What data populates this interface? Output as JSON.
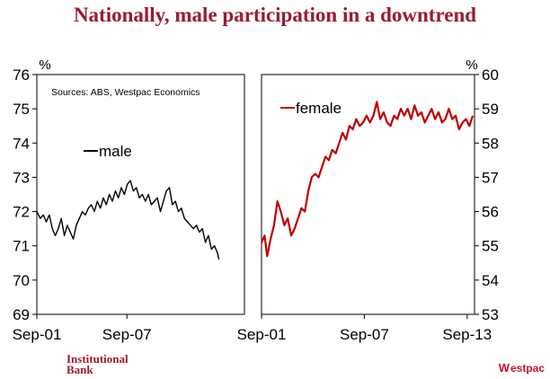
{
  "title": "Nationally, male participation in a downtrend",
  "footer": {
    "institutional_line1": "Institutional",
    "institutional_line2": "Bank",
    "westpac_mark": "W",
    "westpac_label": "estpac"
  },
  "colors": {
    "title": "#9b1b30",
    "male_line": "#000000",
    "female_line": "#c00000",
    "brand_red": "#c8102e"
  },
  "chart_data": [
    {
      "type": "line",
      "title": "",
      "source_note": "Sources: ABS, Westpac Economics",
      "unit_label": "%",
      "ylim": [
        69,
        76
      ],
      "yticks": [
        69,
        70,
        71,
        72,
        73,
        74,
        75,
        76
      ],
      "xlim": [
        2001.67,
        2015.5
      ],
      "xtick_labels": [
        "Sep-01",
        "Sep-07"
      ],
      "xtick_positions": [
        2001.67,
        2007.67
      ],
      "grid": false,
      "series": [
        {
          "name": "male",
          "x": [
            2001.67,
            2001.9,
            2002.1,
            2002.3,
            2002.5,
            2002.7,
            2002.9,
            2003.1,
            2003.3,
            2003.5,
            2003.7,
            2003.9,
            2004.1,
            2004.3,
            2004.5,
            2004.7,
            2004.9,
            2005.1,
            2005.3,
            2005.5,
            2005.7,
            2005.9,
            2006.1,
            2006.3,
            2006.5,
            2006.7,
            2006.9,
            2007.1,
            2007.3,
            2007.5,
            2007.7,
            2007.9,
            2008.1,
            2008.3,
            2008.5,
            2008.7,
            2008.9,
            2009.1,
            2009.3,
            2009.5,
            2009.7,
            2009.9,
            2010.1,
            2010.3,
            2010.5,
            2010.7,
            2010.9,
            2011.1,
            2011.3,
            2011.5,
            2011.7,
            2011.9,
            2012.1,
            2012.3,
            2012.5,
            2012.7,
            2012.9,
            2013.1,
            2013.3,
            2013.5,
            2013.7,
            2013.8
          ],
          "values": [
            72.0,
            71.8,
            71.9,
            71.7,
            71.9,
            71.5,
            71.3,
            71.5,
            71.8,
            71.3,
            71.6,
            71.4,
            71.2,
            71.6,
            71.8,
            72.0,
            71.9,
            72.1,
            72.2,
            72.0,
            72.3,
            72.1,
            72.4,
            72.2,
            72.5,
            72.3,
            72.6,
            72.4,
            72.7,
            72.5,
            72.8,
            72.9,
            72.6,
            72.7,
            72.4,
            72.5,
            72.3,
            72.5,
            72.2,
            72.3,
            72.4,
            72.0,
            72.3,
            72.6,
            72.7,
            72.2,
            72.3,
            72.0,
            72.1,
            71.8,
            71.7,
            71.6,
            71.5,
            71.6,
            71.4,
            71.5,
            71.1,
            71.3,
            70.9,
            71.0,
            70.8,
            70.6
          ]
        }
      ]
    },
    {
      "type": "line",
      "title": "",
      "unit_label": "%",
      "ylim": [
        53,
        60
      ],
      "yticks": [
        53,
        54,
        55,
        56,
        57,
        58,
        59,
        60
      ],
      "xlim": [
        2001.67,
        2014.1
      ],
      "xtick_labels": [
        "Sep-01",
        "Sep-07",
        "Sep-13"
      ],
      "xtick_positions": [
        2001.67,
        2007.67,
        2013.67
      ],
      "grid": false,
      "series": [
        {
          "name": "female",
          "x": [
            2001.67,
            2001.85,
            2002.0,
            2002.2,
            2002.4,
            2002.6,
            2002.8,
            2003.0,
            2003.2,
            2003.4,
            2003.6,
            2003.8,
            2004.0,
            2004.2,
            2004.4,
            2004.6,
            2004.8,
            2005.0,
            2005.2,
            2005.4,
            2005.6,
            2005.8,
            2006.0,
            2006.2,
            2006.4,
            2006.6,
            2006.8,
            2007.0,
            2007.2,
            2007.4,
            2007.6,
            2007.8,
            2008.0,
            2008.2,
            2008.4,
            2008.6,
            2008.8,
            2009.0,
            2009.2,
            2009.4,
            2009.6,
            2009.8,
            2010.0,
            2010.2,
            2010.4,
            2010.6,
            2010.8,
            2011.0,
            2011.2,
            2011.4,
            2011.6,
            2011.8,
            2012.0,
            2012.2,
            2012.4,
            2012.6,
            2012.8,
            2013.0,
            2013.2,
            2013.4,
            2013.6,
            2013.8,
            2014.0
          ],
          "values": [
            55.1,
            55.3,
            54.7,
            55.2,
            55.6,
            56.3,
            56.0,
            55.6,
            55.8,
            55.3,
            55.5,
            55.8,
            56.1,
            56.0,
            56.6,
            57.0,
            57.1,
            57.0,
            57.3,
            57.6,
            57.5,
            57.8,
            57.7,
            58.0,
            58.3,
            58.1,
            58.5,
            58.4,
            58.7,
            58.5,
            58.6,
            58.8,
            58.6,
            58.8,
            59.2,
            58.7,
            58.9,
            58.6,
            58.5,
            58.8,
            58.7,
            59.0,
            58.8,
            59.0,
            58.7,
            59.1,
            58.8,
            58.9,
            58.6,
            58.8,
            59.0,
            58.7,
            58.9,
            58.6,
            58.7,
            59.0,
            58.7,
            58.8,
            58.4,
            58.6,
            58.7,
            58.5,
            58.8
          ]
        }
      ]
    }
  ]
}
